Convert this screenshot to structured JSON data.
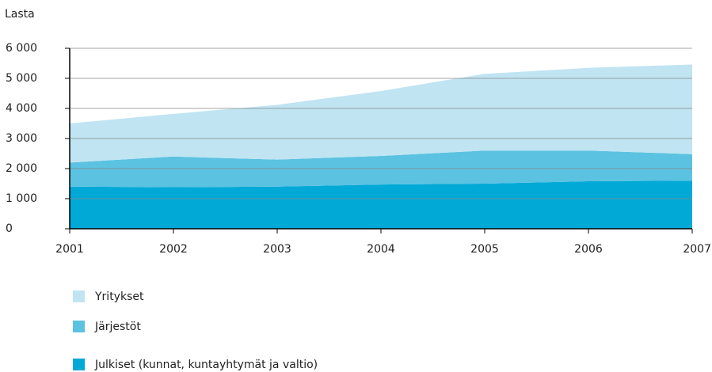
{
  "chart_data": {
    "type": "stacked_area",
    "y_axis_label": "Lasta",
    "x": [
      2001,
      2002,
      2003,
      2004,
      2005,
      2006,
      2007
    ],
    "xlim": [
      2001,
      2007
    ],
    "xticks": [
      2001,
      2002,
      2003,
      2004,
      2005,
      2006,
      2007
    ],
    "ylim": [
      0,
      6000
    ],
    "yticks": [
      0,
      {
        "value": 1000,
        "label": "1 000"
      },
      {
        "value": 2000,
        "label": "2 000"
      },
      {
        "value": 3000,
        "label": "3 000"
      },
      {
        "value": 4000,
        "label": "4 000"
      },
      {
        "value": 5000,
        "label": "5 000"
      },
      {
        "value": 6000,
        "label": "6 000"
      }
    ],
    "grid": true,
    "series": [
      {
        "name": "Julkiset (kunnat, kuntayhtymät ja valtio)",
        "color": "#00a9d6",
        "values": [
          1400,
          1380,
          1400,
          1470,
          1500,
          1580,
          1600
        ]
      },
      {
        "name": "Järjestöt",
        "color": "#5bc2e1",
        "values": [
          800,
          1020,
          900,
          950,
          1100,
          1020,
          880
        ]
      },
      {
        "name": "Yritykset",
        "color": "#c0e4f2",
        "values": [
          1300,
          1420,
          1820,
          2160,
          2550,
          2750,
          2980
        ]
      }
    ]
  }
}
